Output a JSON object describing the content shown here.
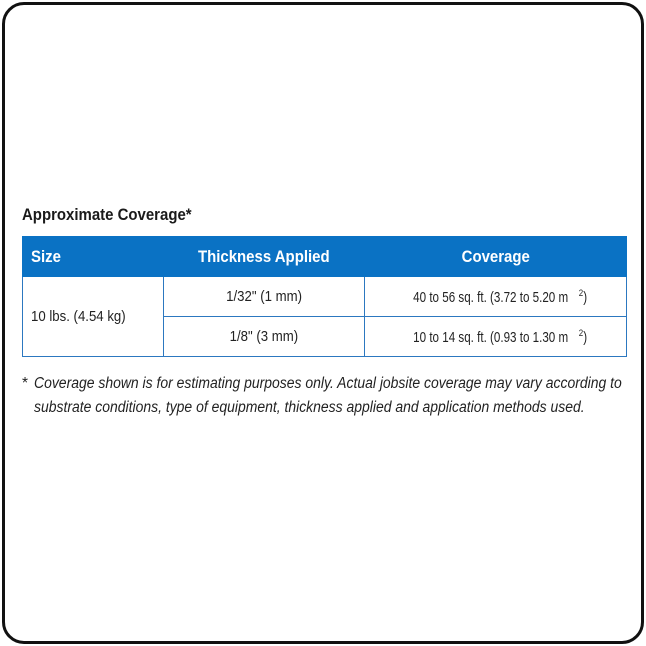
{
  "title": "Approximate Coverage*",
  "table": {
    "headers": [
      "Size",
      "Thickness Applied",
      "Coverage"
    ],
    "size": "10 lbs. (4.54 kg)",
    "rows": [
      {
        "thickness": "1/32\" (1 mm)",
        "coverage": "40 to 56 sq. ft. (3.72 to 5.20 m",
        "unit_exp": "2",
        "close": ")"
      },
      {
        "thickness": "1/8\" (3 mm)",
        "coverage": "10 to 14 sq. ft. (0.93 to 1.30 m",
        "unit_exp": "2",
        "close": ")"
      }
    ],
    "header_color": "#0a72c4"
  },
  "footnote": {
    "marker": "*",
    "text": "Coverage shown is for estimating purposes only. Actual jobsite coverage may vary according to substrate conditions, type of equipment, thickness applied and application methods used."
  }
}
